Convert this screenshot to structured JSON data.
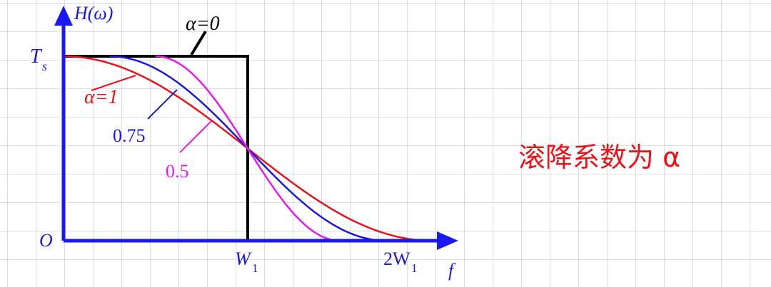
{
  "diagram": {
    "y_axis_label": "H(ω)",
    "x_axis_label": "f",
    "origin_label": "O",
    "ts_label": "T",
    "ts_subscript": "s",
    "w1_label": "W",
    "w1_subscript": "1",
    "two_w1_label": "2W",
    "two_w1_subscript": "1",
    "alpha_zero_label": "α=0",
    "alpha_one_label": "α=1",
    "label_075": "0.75",
    "label_05": "0.5"
  },
  "curves": [
    {
      "alpha": 0,
      "color": "#000000"
    },
    {
      "alpha": 1,
      "color": "#e8141a"
    },
    {
      "alpha": 0.75,
      "color": "#1a1ad6"
    },
    {
      "alpha": 0.5,
      "color": "#e81ae8"
    }
  ],
  "caption": "滚降系数为 α",
  "colors": {
    "axis": "#1a1af0",
    "caption": "#e8141a",
    "grid": "#bec8e1"
  }
}
